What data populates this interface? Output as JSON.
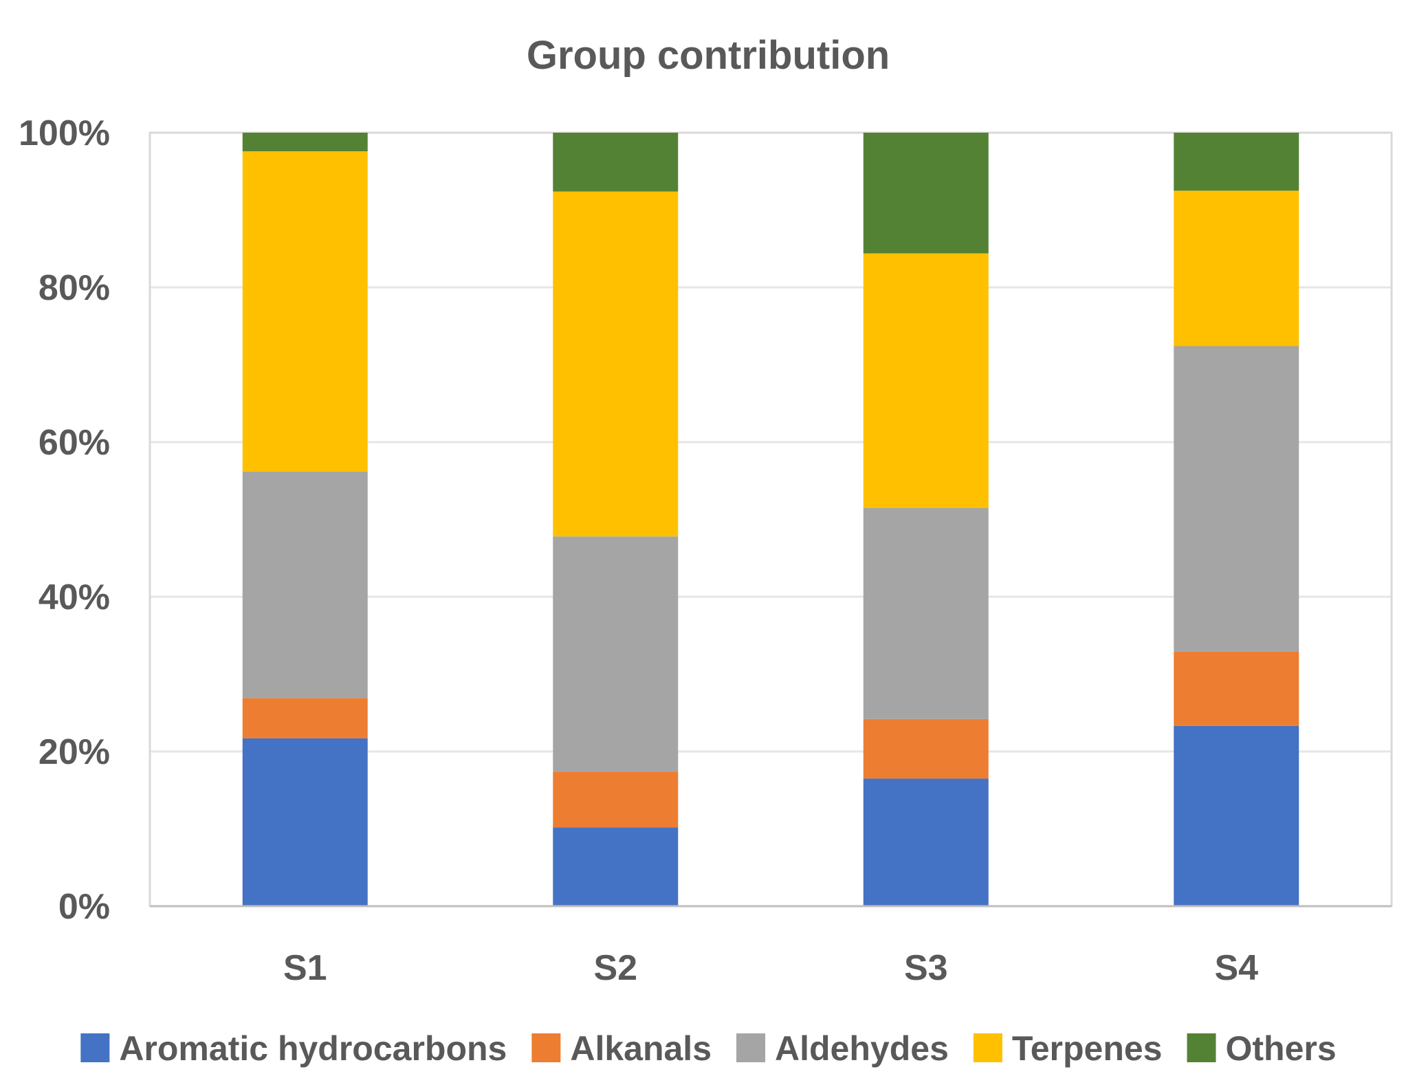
{
  "chart_data": {
    "type": "bar",
    "stacked": "percent",
    "title": "Group contribution",
    "xlabel": "",
    "ylabel": "",
    "ylim": [
      0,
      100
    ],
    "y_ticks": [
      "0%",
      "20%",
      "40%",
      "60%",
      "80%",
      "100%"
    ],
    "categories": [
      "S1",
      "S2",
      "S3",
      "S4"
    ],
    "series": [
      {
        "name": "Aromatic hydrocarbons",
        "color": "#4472C4",
        "values": [
          21.7,
          10.2,
          16.5,
          23.3
        ]
      },
      {
        "name": "Alkanals",
        "color": "#ED7D31",
        "values": [
          5.2,
          7.2,
          7.7,
          9.6
        ]
      },
      {
        "name": "Aldehydes",
        "color": "#A5A5A5",
        "values": [
          29.3,
          30.4,
          27.3,
          39.5
        ]
      },
      {
        "name": "Terpenes",
        "color": "#FFC000",
        "values": [
          41.4,
          44.6,
          32.9,
          20.1
        ]
      },
      {
        "name": "Others",
        "color": "#548235",
        "values": [
          2.4,
          7.6,
          15.6,
          7.5
        ]
      }
    ],
    "grid": true,
    "legend_position": "bottom"
  }
}
